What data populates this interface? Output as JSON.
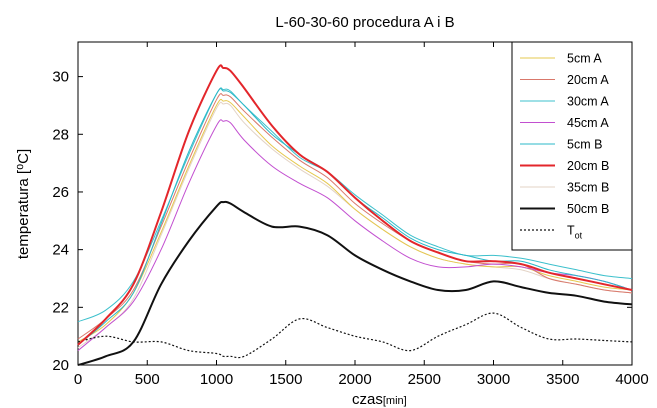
{
  "chart_data": {
    "type": "line",
    "title": "L-60-30-60 procedura A i B",
    "xlabel": "czas",
    "xlabel_unit": "[min]",
    "ylabel": "temperatura [⁰C]",
    "xlim": [
      0,
      4000
    ],
    "ylim": [
      20,
      31.2
    ],
    "xticks": [
      0,
      500,
      1000,
      1500,
      2000,
      2500,
      3000,
      3500,
      4000
    ],
    "yticks": [
      20,
      22,
      24,
      26,
      28,
      30
    ],
    "grid": false,
    "legend_position": "top-right",
    "x": [
      0,
      200,
      400,
      600,
      800,
      1000,
      1050,
      1100,
      1200,
      1400,
      1600,
      1800,
      2000,
      2200,
      2400,
      2600,
      2800,
      3000,
      3200,
      3400,
      3600,
      3800,
      4000
    ],
    "series": [
      {
        "name": "5cm A",
        "color": "#e6c84f",
        "width": 1,
        "dash": "",
        "values": [
          20.8,
          21.4,
          22.5,
          24.6,
          26.9,
          29.0,
          29.15,
          29.1,
          28.6,
          27.6,
          26.9,
          26.3,
          25.4,
          24.7,
          24.1,
          23.7,
          23.5,
          23.4,
          23.4,
          23.1,
          22.9,
          22.7,
          22.6
        ]
      },
      {
        "name": "20cm A",
        "color": "#d9786b",
        "width": 1,
        "dash": "",
        "values": [
          20.9,
          21.6,
          22.6,
          24.8,
          27.1,
          29.2,
          29.35,
          29.3,
          28.8,
          27.9,
          27.1,
          26.5,
          25.6,
          24.9,
          24.3,
          23.9,
          23.6,
          23.5,
          23.5,
          23.0,
          22.8,
          22.6,
          22.5
        ]
      },
      {
        "name": "30cm A",
        "color": "#3cc0cc",
        "width": 1,
        "dash": "",
        "values": [
          21.5,
          21.9,
          22.9,
          25.0,
          27.3,
          29.4,
          29.55,
          29.5,
          29.0,
          28.1,
          27.2,
          26.7,
          25.9,
          25.2,
          24.5,
          24.1,
          23.8,
          23.8,
          23.7,
          23.5,
          23.3,
          23.1,
          23.0
        ]
      },
      {
        "name": "45cm A",
        "color": "#c24fd0",
        "width": 1,
        "dash": "",
        "values": [
          20.5,
          21.3,
          22.2,
          24.0,
          26.3,
          28.3,
          28.45,
          28.4,
          27.8,
          26.9,
          26.3,
          25.8,
          25.0,
          24.3,
          23.7,
          23.4,
          23.4,
          23.5,
          23.4,
          23.2,
          23.1,
          22.9,
          22.6
        ]
      },
      {
        "name": "5cm B",
        "color": "#2bb8c8",
        "width": 1,
        "dash": "",
        "values": [
          20.7,
          21.5,
          22.5,
          24.9,
          27.4,
          29.4,
          29.5,
          29.45,
          29.0,
          28.0,
          27.3,
          26.7,
          25.8,
          25.1,
          24.4,
          24.0,
          23.8,
          23.6,
          23.6,
          23.3,
          23.1,
          22.9,
          22.6
        ]
      },
      {
        "name": "20cm B",
        "color": "#e3262b",
        "width": 2,
        "dash": "",
        "values": [
          20.7,
          21.6,
          22.8,
          25.3,
          28.1,
          30.2,
          30.3,
          30.2,
          29.6,
          28.3,
          27.3,
          26.7,
          25.8,
          25.0,
          24.3,
          23.9,
          23.6,
          23.6,
          23.5,
          23.2,
          23.0,
          22.8,
          22.6
        ]
      },
      {
        "name": "35cm B",
        "color": "#e3d3c6",
        "width": 1,
        "dash": "",
        "values": [
          20.6,
          21.3,
          22.3,
          24.5,
          26.8,
          28.9,
          29.05,
          29.0,
          28.4,
          27.5,
          26.8,
          26.2,
          25.4,
          24.7,
          24.1,
          23.7,
          23.5,
          23.4,
          23.3,
          23.0,
          22.8,
          22.6,
          22.5
        ]
      },
      {
        "name": "50cm B",
        "color": "#111111",
        "width": 2,
        "dash": "",
        "values": [
          20.0,
          20.3,
          20.8,
          22.8,
          24.3,
          25.5,
          25.65,
          25.6,
          25.3,
          24.8,
          24.8,
          24.5,
          23.8,
          23.3,
          22.9,
          22.6,
          22.6,
          22.9,
          22.7,
          22.5,
          22.4,
          22.2,
          22.1
        ]
      },
      {
        "name": "T",
        "name_sub": "ot",
        "color": "#111111",
        "width": 1.2,
        "dash": "2,2",
        "values": [
          20.8,
          21.0,
          20.8,
          20.8,
          20.5,
          20.4,
          20.3,
          20.3,
          20.3,
          20.9,
          21.6,
          21.3,
          21.0,
          20.8,
          20.5,
          21.0,
          21.4,
          21.8,
          21.3,
          20.9,
          20.9,
          20.85,
          20.8
        ]
      }
    ]
  }
}
